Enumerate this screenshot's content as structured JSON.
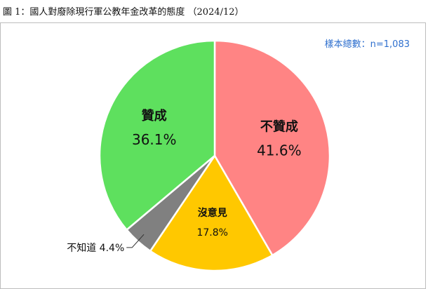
{
  "figure_title": "圖 1：國人對廢除現行軍公教年金改革的態度 （2024/12）",
  "sample_note": "樣本總數：n=1,083",
  "colors": {
    "sample_text": "#2e6fce",
    "border": "#bdbdbd"
  },
  "chart_data": {
    "type": "pie",
    "title": "圖 1：國人對廢除現行軍公教年金改革的態度 （2024/12）",
    "start_angle_deg": 0,
    "direction": "clockwise",
    "slices": [
      {
        "label": "不贊成",
        "value": 41.6,
        "value_label": "41.6%",
        "color": "#ff8484"
      },
      {
        "label": "沒意見",
        "value": 17.8,
        "value_label": "17.8%",
        "color": "#ffc800"
      },
      {
        "label": "不知道",
        "value": 4.4,
        "value_label": "4.4%",
        "color": "#808080",
        "label_outside": true
      },
      {
        "label": "贊成",
        "value": 36.1,
        "value_label": "36.1%",
        "color": "#5ee05e"
      }
    ]
  }
}
